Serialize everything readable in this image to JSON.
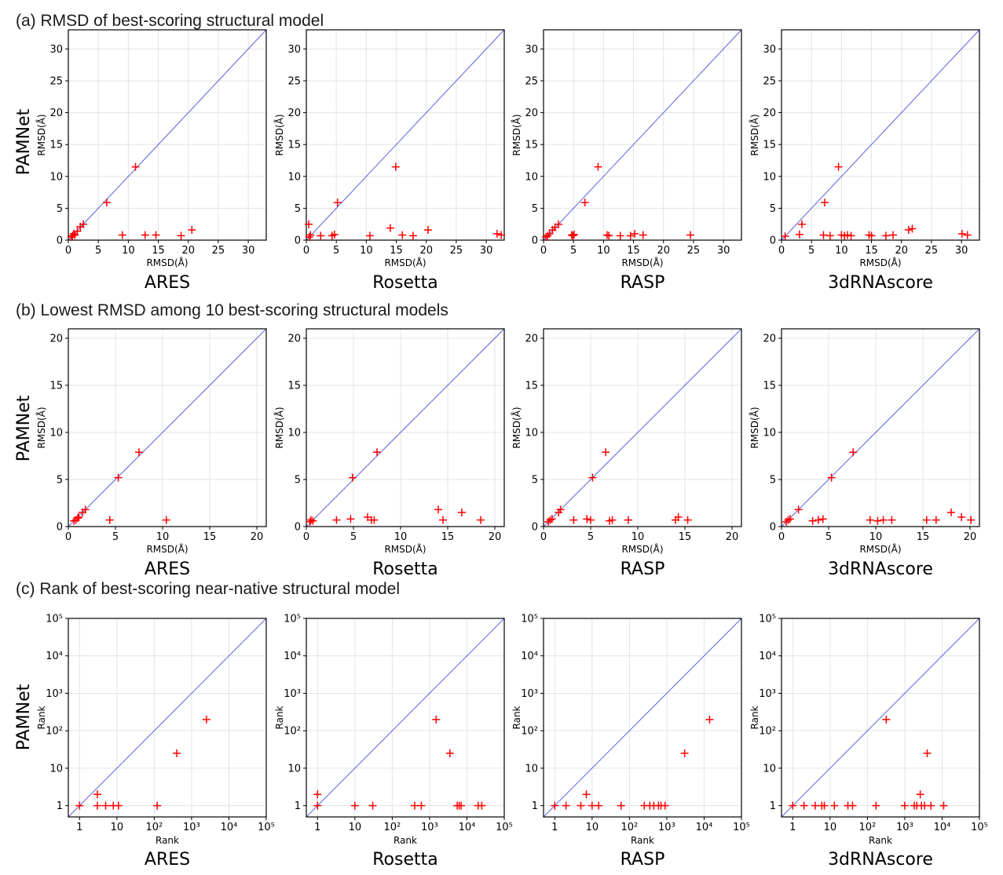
{
  "figure": {
    "ylabel_rows": "PAMNet"
  },
  "chart_data": [
    {
      "section": "(a) RMSD of best-scoring structural model",
      "scale": "linear",
      "xlim": [
        0,
        33
      ],
      "ylim": [
        0,
        33
      ],
      "ticks": [
        0,
        5,
        10,
        15,
        20,
        25,
        30
      ],
      "xlabel": "RMSD(Å)",
      "ylabel": "RMSD(Å)",
      "charts": [
        {
          "type": "scatter",
          "method": "ARES",
          "points": [
            [
              0.5,
              0.5
            ],
            [
              0.7,
              0.7
            ],
            [
              0.9,
              1.0
            ],
            [
              1.1,
              0.8
            ],
            [
              1.5,
              1.4
            ],
            [
              2.0,
              2.1
            ],
            [
              2.5,
              2.5
            ],
            [
              6.4,
              5.9
            ],
            [
              9.0,
              0.8
            ],
            [
              11.2,
              11.5
            ],
            [
              12.8,
              0.8
            ],
            [
              14.6,
              0.8
            ],
            [
              18.8,
              0.7
            ],
            [
              20.6,
              1.6
            ]
          ]
        },
        {
          "type": "scatter",
          "method": "Rosetta",
          "points": [
            [
              0.4,
              2.5
            ],
            [
              0.5,
              0.5
            ],
            [
              0.7,
              0.8
            ],
            [
              2.4,
              0.7
            ],
            [
              4.3,
              0.7
            ],
            [
              4.7,
              0.9
            ],
            [
              5.2,
              5.9
            ],
            [
              10.6,
              0.7
            ],
            [
              14.0,
              1.9
            ],
            [
              14.9,
              11.5
            ],
            [
              16.0,
              0.8
            ],
            [
              17.8,
              0.7
            ],
            [
              20.3,
              1.6
            ],
            [
              31.8,
              1.0
            ],
            [
              32.5,
              0.8
            ]
          ]
        },
        {
          "type": "scatter",
          "method": "RASP",
          "points": [
            [
              0.4,
              0.5
            ],
            [
              0.7,
              0.7
            ],
            [
              1.0,
              1.0
            ],
            [
              1.5,
              1.6
            ],
            [
              1.9,
              2.0
            ],
            [
              2.5,
              2.5
            ],
            [
              4.7,
              0.8
            ],
            [
              4.9,
              0.7
            ],
            [
              5.1,
              0.9
            ],
            [
              6.9,
              5.9
            ],
            [
              9.1,
              11.5
            ],
            [
              10.6,
              0.8
            ],
            [
              10.9,
              0.7
            ],
            [
              12.8,
              0.7
            ],
            [
              14.5,
              0.7
            ],
            [
              15.2,
              1.0
            ],
            [
              16.6,
              0.8
            ],
            [
              24.5,
              0.8
            ]
          ]
        },
        {
          "type": "scatter",
          "method": "3dRNAscore",
          "points": [
            [
              0.6,
              0.6
            ],
            [
              3.0,
              0.9
            ],
            [
              3.4,
              2.5
            ],
            [
              7.0,
              0.8
            ],
            [
              7.2,
              5.9
            ],
            [
              8.1,
              0.7
            ],
            [
              9.5,
              11.5
            ],
            [
              10.0,
              0.8
            ],
            [
              10.5,
              0.7
            ],
            [
              11.0,
              0.8
            ],
            [
              11.6,
              0.7
            ],
            [
              14.6,
              0.8
            ],
            [
              15.0,
              0.7
            ],
            [
              17.4,
              0.7
            ],
            [
              18.6,
              0.8
            ],
            [
              21.2,
              1.6
            ],
            [
              21.8,
              1.8
            ],
            [
              30.1,
              1.0
            ],
            [
              31.0,
              0.8
            ]
          ]
        }
      ]
    },
    {
      "section": "(b) Lowest RMSD among 10 best-scoring structural models",
      "scale": "linear",
      "xlim": [
        0,
        21
      ],
      "ylim": [
        0,
        21
      ],
      "ticks": [
        0,
        5,
        10,
        15,
        20
      ],
      "xlabel": "RMSD(Å)",
      "ylabel": "RMSD(Å)",
      "charts": [
        {
          "type": "scatter",
          "method": "ARES",
          "points": [
            [
              0.6,
              0.6
            ],
            [
              0.8,
              0.7
            ],
            [
              1.0,
              0.9
            ],
            [
              1.1,
              1.0
            ],
            [
              1.5,
              1.5
            ],
            [
              1.8,
              1.8
            ],
            [
              4.4,
              0.7
            ],
            [
              5.3,
              5.2
            ],
            [
              7.5,
              7.9
            ],
            [
              10.4,
              0.7
            ]
          ]
        },
        {
          "type": "scatter",
          "method": "Rosetta",
          "points": [
            [
              0.4,
              0.5
            ],
            [
              0.5,
              0.7
            ],
            [
              0.7,
              0.6
            ],
            [
              3.2,
              0.7
            ],
            [
              4.7,
              0.8
            ],
            [
              4.9,
              5.2
            ],
            [
              6.5,
              1.0
            ],
            [
              6.9,
              0.7
            ],
            [
              7.2,
              0.7
            ],
            [
              7.5,
              7.9
            ],
            [
              14.0,
              1.8
            ],
            [
              14.5,
              0.7
            ],
            [
              16.5,
              1.5
            ],
            [
              18.5,
              0.7
            ]
          ]
        },
        {
          "type": "scatter",
          "method": "RASP",
          "points": [
            [
              0.5,
              0.5
            ],
            [
              0.7,
              0.7
            ],
            [
              0.9,
              0.8
            ],
            [
              1.6,
              1.5
            ],
            [
              1.8,
              1.8
            ],
            [
              3.2,
              0.7
            ],
            [
              4.6,
              0.8
            ],
            [
              5.0,
              0.7
            ],
            [
              5.2,
              5.2
            ],
            [
              6.6,
              7.9
            ],
            [
              7.0,
              0.6
            ],
            [
              7.3,
              0.7
            ],
            [
              9.0,
              0.7
            ],
            [
              14.0,
              0.7
            ],
            [
              14.3,
              1.0
            ],
            [
              15.3,
              0.7
            ]
          ]
        },
        {
          "type": "scatter",
          "method": "3dRNAscore",
          "points": [
            [
              0.5,
              0.5
            ],
            [
              0.7,
              0.7
            ],
            [
              0.9,
              0.8
            ],
            [
              1.8,
              1.8
            ],
            [
              3.3,
              0.6
            ],
            [
              3.9,
              0.7
            ],
            [
              4.4,
              0.8
            ],
            [
              5.3,
              5.2
            ],
            [
              7.6,
              7.9
            ],
            [
              9.4,
              0.7
            ],
            [
              10.2,
              0.6
            ],
            [
              10.8,
              0.7
            ],
            [
              11.7,
              0.7
            ],
            [
              15.4,
              0.7
            ],
            [
              16.4,
              0.7
            ],
            [
              18.0,
              1.5
            ],
            [
              19.1,
              1.0
            ],
            [
              20.1,
              0.7
            ]
          ]
        }
      ]
    },
    {
      "section": "(c) Rank of best-scoring near-native structural model",
      "scale": "log",
      "xlim": [
        0.5,
        100000
      ],
      "ylim": [
        0.5,
        100000
      ],
      "ticks": [
        1,
        10,
        100,
        1000,
        10000,
        100000
      ],
      "tick_labels": [
        "1",
        "10",
        "10²",
        "10³",
        "10⁴",
        "10⁵"
      ],
      "xlabel": "Rank",
      "ylabel": "Rank",
      "charts": [
        {
          "type": "scatter",
          "method": "ARES",
          "points": [
            [
              1,
              1
            ],
            [
              3,
              2
            ],
            [
              3,
              1
            ],
            [
              5,
              1
            ],
            [
              8,
              1
            ],
            [
              11,
              1
            ],
            [
              120,
              1
            ],
            [
              400,
              25
            ],
            [
              2500,
              200
            ]
          ]
        },
        {
          "type": "scatter",
          "method": "Rosetta",
          "points": [
            [
              1,
              2
            ],
            [
              1,
              1
            ],
            [
              10,
              1
            ],
            [
              30,
              1
            ],
            [
              400,
              1
            ],
            [
              600,
              1
            ],
            [
              1500,
              200
            ],
            [
              3500,
              25
            ],
            [
              5500,
              1
            ],
            [
              6200,
              1
            ],
            [
              7000,
              1
            ],
            [
              20000,
              1
            ],
            [
              25000,
              1
            ]
          ]
        },
        {
          "type": "scatter",
          "method": "RASP",
          "points": [
            [
              1,
              1
            ],
            [
              2,
              1
            ],
            [
              5,
              1
            ],
            [
              7,
              2
            ],
            [
              10,
              1
            ],
            [
              15,
              1
            ],
            [
              60,
              1
            ],
            [
              250,
              1
            ],
            [
              350,
              1
            ],
            [
              450,
              1
            ],
            [
              600,
              1
            ],
            [
              700,
              1
            ],
            [
              900,
              1
            ],
            [
              3000,
              25
            ],
            [
              14000,
              200
            ]
          ]
        },
        {
          "type": "scatter",
          "method": "3dRNAscore",
          "points": [
            [
              1,
              1
            ],
            [
              2,
              1
            ],
            [
              4,
              1
            ],
            [
              6,
              1
            ],
            [
              7,
              1
            ],
            [
              13,
              1
            ],
            [
              30,
              1
            ],
            [
              40,
              1
            ],
            [
              170,
              1
            ],
            [
              320,
              200
            ],
            [
              1000,
              1
            ],
            [
              1800,
              1
            ],
            [
              2100,
              1
            ],
            [
              2600,
              2
            ],
            [
              2800,
              1
            ],
            [
              3400,
              1
            ],
            [
              4000,
              25
            ],
            [
              5000,
              1
            ],
            [
              11000,
              1
            ]
          ]
        }
      ]
    }
  ]
}
